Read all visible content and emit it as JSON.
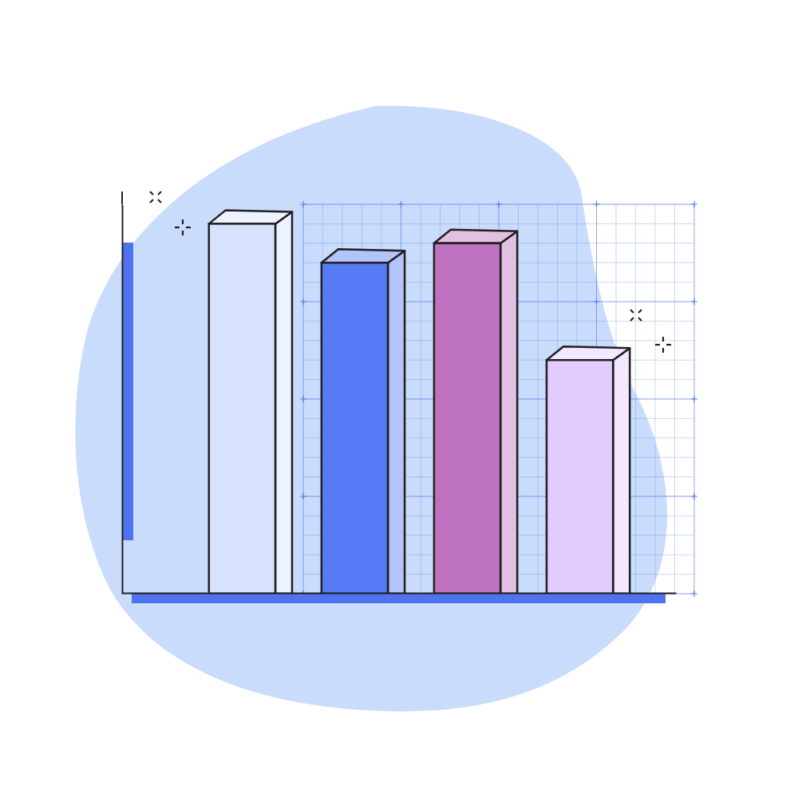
{
  "chart_data": {
    "type": "bar",
    "categories": [
      null,
      null,
      null,
      null
    ],
    "values": [
      19,
      17,
      18,
      12
    ],
    "colors": [
      "#d6e2ff",
      "#557cf6",
      "#bd72bf",
      "#e2ccff"
    ],
    "ylim": [
      0,
      20
    ],
    "yticks": [
      0,
      5,
      10,
      15,
      20
    ],
    "grid": true,
    "tick_labels": false
  }
}
